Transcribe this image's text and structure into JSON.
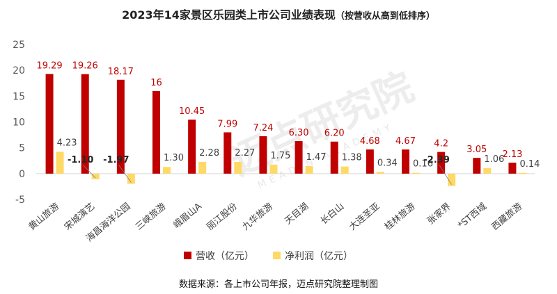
{
  "title": "2023年14家景区乐园类上市公司业绩表现",
  "subtitle": "（按营收从高到低排序）",
  "source": "数据来源：各上市公司年报，迈点研究院整理制图",
  "watermark": {
    "cn": "迈点研究院",
    "en": "MEADIN ACADEMY"
  },
  "colors": {
    "revenue": "#c00000",
    "profit": "#ffd966",
    "revenue_label": "#c00000",
    "profit_label": "#404040",
    "axis": "#595959",
    "gridline": "#d9d9d9"
  },
  "chart_data": {
    "type": "bar",
    "categories": [
      "黄山旅游",
      "宋城演艺",
      "海昌海洋公园",
      "三峡旅游",
      "峨眉山A",
      "丽江股份",
      "九华旅游",
      "天目湖",
      "长白山",
      "大连圣亚",
      "桂林旅游",
      "张家界",
      "*ST西域",
      "西藏旅游"
    ],
    "series": [
      {
        "name": "营收（亿元）",
        "values": [
          19.29,
          19.26,
          18.17,
          16,
          10.45,
          7.99,
          7.24,
          6.3,
          6.2,
          4.68,
          4.67,
          4.2,
          3.05,
          2.13
        ]
      },
      {
        "name": "净利润（亿元）",
        "values": [
          4.23,
          -1.1,
          -1.97,
          1.3,
          2.28,
          2.27,
          1.75,
          1.47,
          1.38,
          0.34,
          0.16,
          -2.39,
          1.06,
          0.14
        ]
      }
    ],
    "revenue_labels": [
      "19.29",
      "19.26",
      "18.17",
      "16",
      "10.45",
      "7.99",
      "7.24",
      "6.30",
      "6.20",
      "4.68",
      "4.67",
      "4.2",
      "3.05",
      "2.13"
    ],
    "profit_labels": [
      "4.23",
      "-1.10",
      "-1.97",
      "1.30",
      "2.28",
      "2.27",
      "1.75",
      "1.47",
      "1.38",
      "0.34",
      "0.16",
      "-2.39",
      "1.06",
      "0.14"
    ],
    "y_ticks": [
      "-5",
      "0",
      "5",
      "10",
      "15",
      "20",
      "25"
    ],
    "ylim": [
      -5,
      25
    ],
    "legend_position": "bottom"
  }
}
